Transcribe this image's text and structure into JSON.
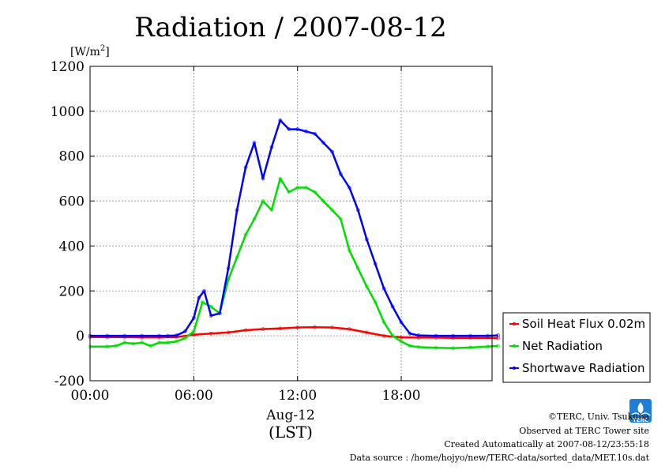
{
  "chart_data": {
    "type": "line",
    "title": "Radiation / 2007-08-12",
    "unit_label": "[W/m",
    "unit_sup": "2",
    "unit_close": "]",
    "x_date_label": "Aug-12",
    "x_tz_label": "(LST)",
    "x_range": [
      0,
      24
    ],
    "ylim": [
      -200,
      1200
    ],
    "y_ticks": [
      -200,
      0,
      200,
      400,
      600,
      800,
      1000,
      1200
    ],
    "x_ticks": [
      {
        "x": 0,
        "label": "00:00"
      },
      {
        "x": 6,
        "label": "06:00"
      },
      {
        "x": 12,
        "label": "12:00"
      },
      {
        "x": 18,
        "label": "18:00"
      }
    ],
    "grid": true,
    "legend_position": "right",
    "series": [
      {
        "name": "Soil Heat Flux 0.02m",
        "color": "#ff0000",
        "x": [
          0,
          1,
          2,
          3,
          4,
          5,
          6,
          7,
          8,
          9,
          10,
          11,
          12,
          13,
          14,
          15,
          16,
          17,
          18,
          19,
          20,
          21,
          22,
          23.6
        ],
        "y": [
          -5,
          -6,
          -6,
          -7,
          -7,
          -6,
          5,
          10,
          15,
          25,
          30,
          33,
          37,
          38,
          37,
          30,
          15,
          0,
          -7,
          -8,
          -8,
          -9,
          -9,
          -10
        ]
      },
      {
        "name": "Net Radiation",
        "color": "#00dd00",
        "x": [
          0,
          1,
          1.5,
          2,
          2.5,
          3,
          3.5,
          4,
          4.5,
          5,
          5.5,
          6,
          6.5,
          7,
          7.5,
          8,
          8.5,
          9,
          9.5,
          10,
          10.5,
          11,
          11.5,
          12,
          12.5,
          13,
          13.5,
          14,
          14.5,
          15,
          15.5,
          16,
          16.5,
          17,
          17.5,
          18,
          18.5,
          19,
          20,
          21,
          22,
          23,
          23.6
        ],
        "y": [
          -48,
          -48,
          -45,
          -30,
          -35,
          -30,
          -45,
          -30,
          -30,
          -25,
          -10,
          20,
          150,
          130,
          100,
          250,
          350,
          450,
          520,
          600,
          560,
          700,
          640,
          660,
          660,
          640,
          600,
          560,
          520,
          380,
          300,
          220,
          150,
          60,
          0,
          -25,
          -45,
          -50,
          -53,
          -55,
          -52,
          -48,
          -45
        ]
      },
      {
        "name": "Shortwave Radiation",
        "color": "#0000ff",
        "x": [
          0,
          1,
          2,
          3,
          4,
          4.5,
          5,
          5.5,
          6,
          6.3,
          6.6,
          7,
          7.5,
          8,
          8.5,
          9,
          9.5,
          10,
          10.5,
          11,
          11.5,
          12,
          12.5,
          13,
          13.5,
          14,
          14.5,
          15,
          15.5,
          16,
          16.5,
          17,
          17.5,
          18,
          18.5,
          19,
          20,
          21,
          22,
          23,
          23.6
        ],
        "y": [
          0,
          0,
          0,
          0,
          0,
          0,
          2,
          20,
          80,
          170,
          200,
          90,
          100,
          300,
          560,
          750,
          860,
          700,
          840,
          960,
          920,
          920,
          910,
          900,
          860,
          820,
          720,
          660,
          560,
          430,
          320,
          210,
          130,
          60,
          10,
          2,
          0,
          0,
          0,
          0,
          2
        ]
      }
    ]
  },
  "credits": {
    "copyright": "©TERC, Univ. Tsukuba",
    "observed": "Observed at TERC Tower site",
    "created": "Created Automatically at 2007-08-12/23:55:18",
    "source": "Data source : /home/hojyo/new/TERC-data/sorted_data/MET.10s.dat"
  },
  "logo": {
    "text": "TERC",
    "color": "#1f7fd6"
  }
}
